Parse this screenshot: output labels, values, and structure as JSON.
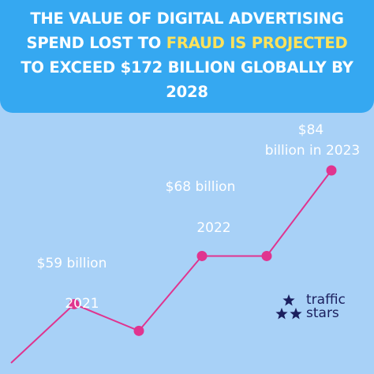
{
  "title": {
    "line1": "THE VALUE OF DIGITAL ADVERTISING",
    "line2_plain": "SPEND LOST TO ",
    "line2_highlight": "FRAUD IS PROJECTED",
    "line3": "TO EXCEED $172 BILLION GLOBALLY BY",
    "line4": "2028"
  },
  "colors": {
    "background": "#a8d1f7",
    "banner": "#35a8f1",
    "highlight": "#ffe25a",
    "line": "#e0348f",
    "logo": "#1b1f5e"
  },
  "logo": {
    "line1": "traffic",
    "line2": "stars",
    "icon": "three-stars-icon"
  },
  "chart_data": {
    "type": "line",
    "series": [
      {
        "values": [
          48,
          59,
          54,
          68,
          68,
          84
        ],
        "markers": [
          false,
          true,
          true,
          true,
          true,
          true
        ]
      }
    ],
    "point_labels": [
      {
        "index": 1,
        "top": "$59 billion",
        "bottom": "2021"
      },
      {
        "index": 3,
        "top": "$68 billion",
        "bottom": "2022"
      },
      {
        "index": 5,
        "top_line1": "$84",
        "top_line2": "billion in 2023"
      }
    ],
    "ylim": [
      48,
      84
    ],
    "grid": false,
    "legend": "none"
  }
}
